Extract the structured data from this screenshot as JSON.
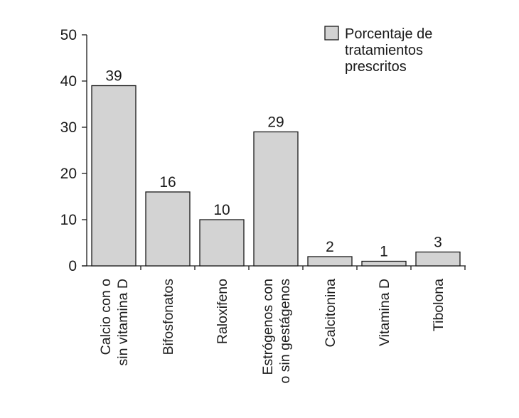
{
  "chart_data": {
    "type": "bar",
    "title": "",
    "xlabel": "",
    "ylabel": "",
    "ylim": [
      0,
      50
    ],
    "yticks": [
      0,
      10,
      20,
      30,
      40,
      50
    ],
    "grid": false,
    "legend": {
      "position": "top-right",
      "label_lines": [
        "Porcentaje de",
        "tratamientos",
        "prescritos"
      ]
    },
    "categories": [
      [
        "Calcio con o",
        "sin vitamina D"
      ],
      [
        "Bifosfonatos"
      ],
      [
        "Raloxifeno"
      ],
      [
        "Estrógenos con",
        "o sin gestágenos"
      ],
      [
        "Calcitonina"
      ],
      [
        "Vitamina D"
      ],
      [
        "Tibolona"
      ]
    ],
    "series": [
      {
        "name": "Porcentaje de tratamientos prescritos",
        "values": [
          39,
          16,
          10,
          29,
          2,
          1,
          3
        ]
      }
    ],
    "data_labels": [
      "39",
      "16",
      "10",
      "29",
      "2",
      "1",
      "3"
    ],
    "colors": {
      "bar_fill": "#d3d3d3",
      "bar_stroke": "#1a1a1a",
      "axis": "#1a1a1a"
    }
  }
}
